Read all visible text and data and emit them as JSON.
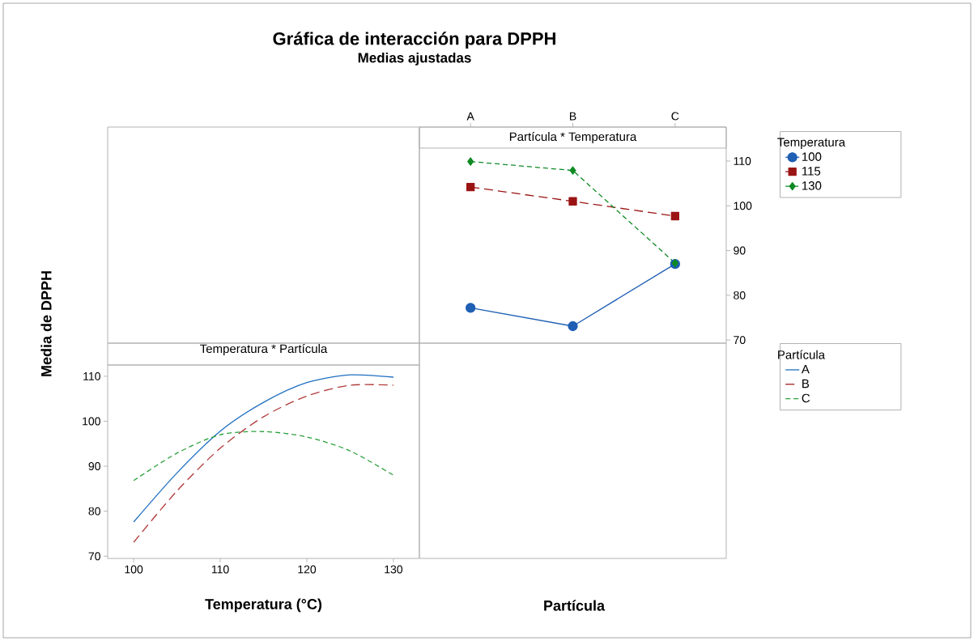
{
  "chart_data": [
    {
      "type": "line",
      "title": "Gráfica de interacción para DPPH",
      "subtitle": "Medias ajustadas",
      "annotations": [
        "Partícula * Temperatura"
      ],
      "xlabel": "Partícula",
      "categories": [
        "A",
        "B",
        "C"
      ],
      "legend_title": "Temperatura",
      "legend": "right",
      "ylim": [
        69.3,
        117.6
      ],
      "yticks": [
        70,
        80,
        90,
        100,
        110
      ],
      "series": [
        {
          "name": "100",
          "color": "#1f5fb4",
          "marker": "circle",
          "line_style": "solid",
          "values": [
            77.2,
            73.1,
            87.0
          ]
        },
        {
          "name": "115",
          "color": "#9b1414",
          "marker": "square",
          "line_style": "dashed",
          "values": [
            104.2,
            101.0,
            97.7
          ]
        },
        {
          "name": "130",
          "color": "#0f8a23",
          "marker": "diamond",
          "line_style": "dashed",
          "values": [
            109.9,
            107.9,
            87.2
          ]
        }
      ]
    },
    {
      "type": "line",
      "title": "Temperatura * Partícula",
      "xlabel": "Temperatura (°C)",
      "ylabel": "Media de DPPH",
      "x": [
        100,
        105,
        110,
        115,
        120,
        125,
        130
      ],
      "xlim": [
        97,
        133
      ],
      "xticks": [
        100,
        110,
        120,
        130
      ],
      "ylim": [
        69.5,
        112.5
      ],
      "yticks": [
        70,
        80,
        90,
        100,
        110
      ],
      "legend_title": "Partícula",
      "legend": "right",
      "series": [
        {
          "name": "A",
          "color": "#1f6fc0",
          "line_style": "solid",
          "values": [
            77.6,
            88.5,
            97.8,
            104.2,
            108.6,
            110.3,
            109.8
          ]
        },
        {
          "name": "B",
          "color": "#b03a3a",
          "line_style": "dashed",
          "values": [
            73.1,
            84.5,
            94.0,
            101.0,
            105.6,
            108.0,
            108.0
          ]
        },
        {
          "name": "C",
          "color": "#2ca03c",
          "line_style": "dashed",
          "values": [
            86.8,
            92.9,
            97.0,
            97.7,
            96.5,
            93.4,
            88.0
          ]
        }
      ]
    }
  ]
}
